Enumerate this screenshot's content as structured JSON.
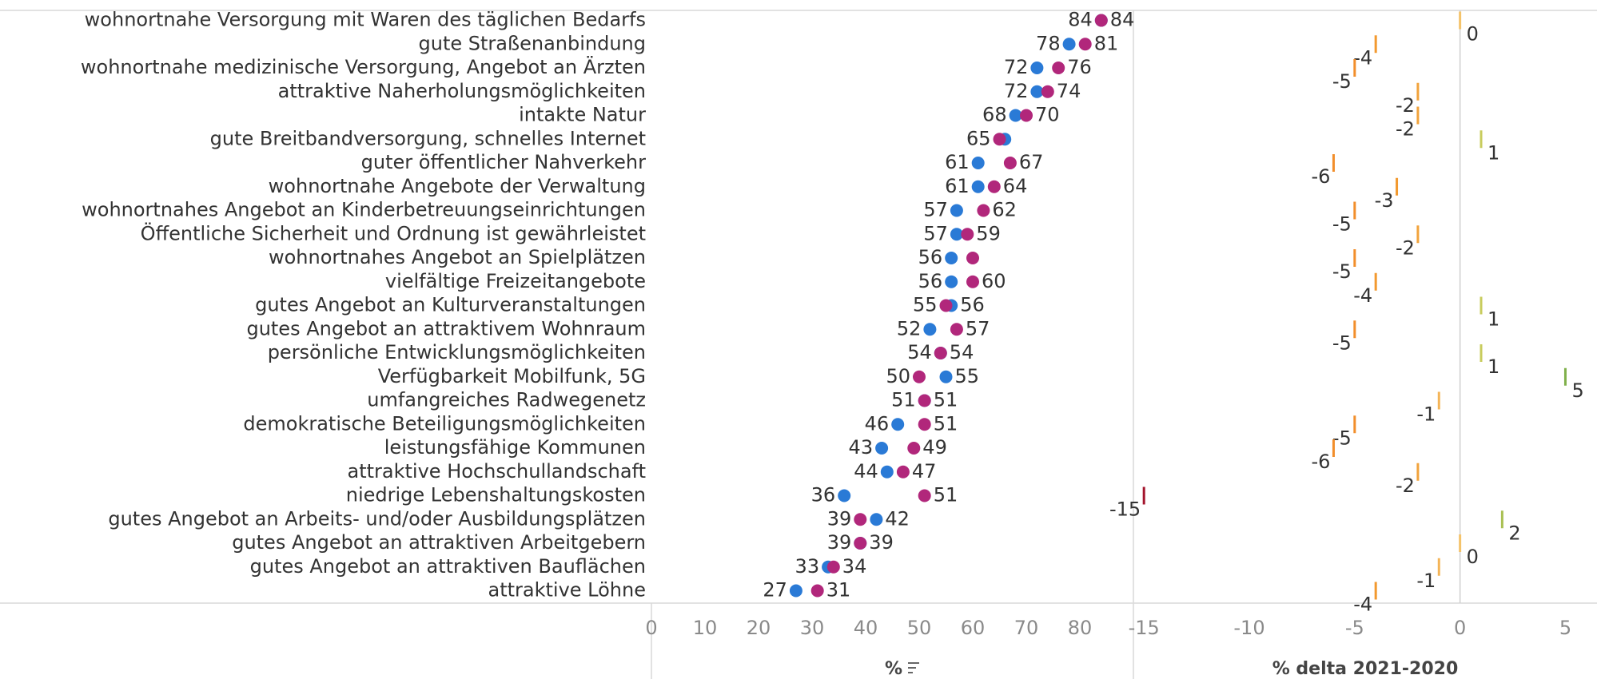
{
  "chart_data": [
    {
      "type": "dot",
      "categories": [
        "wohnortnahe Versorgung mit Waren des täglichen Bedarfs",
        "gute Straßenanbindung",
        "wohnortnahe medizinische Versorgung, Angebot an Ärzten",
        "attraktive Naherholungsmöglichkeiten",
        "intakte Natur",
        "gute Breitbandversorgung, schnelles Internet",
        "guter öffentlicher Nahverkehr",
        "wohnortnahe Angebote der Verwaltung",
        "wohnortnahes Angebot an Kinderbetreuungseinrichtungen",
        "Öffentliche Sicherheit und Ordnung ist gewährleistet",
        "wohnortnahes Angebot an Spielplätzen",
        "vielfältige Freizeitangebote",
        "gutes Angebot an Kulturveranstaltungen",
        "gutes Angebot an attraktivem Wohnraum",
        "persönliche Entwicklungsmöglichkeiten",
        "Verfügbarkeit Mobilfunk, 5G",
        "umfangreiches Radwegenetz",
        "demokratische Beteiligungsmöglichkeiten",
        "leistungsfähige Kommunen",
        "attraktive Hochschullandschaft",
        "niedrige Lebenshaltungskosten",
        "gutes Angebot an Arbeits- und/oder Ausbildungsplätzen",
        "gutes Angebot an attraktiven Arbeitgebern",
        "gutes Angebot an attraktiven Bauflächen",
        "attraktive Löhne"
      ],
      "series": [
        {
          "color": "#2a7ad6",
          "values": [
            84,
            78,
            72,
            72,
            68,
            66,
            61,
            61,
            57,
            57,
            56,
            56,
            56,
            52,
            54,
            55,
            51,
            46,
            43,
            44,
            36,
            42,
            39,
            33,
            27
          ],
          "value_labels": [
            "84",
            "78",
            "72",
            "72",
            "68",
            null,
            "61",
            "61",
            "57",
            "57",
            "56",
            "56",
            "56",
            "52",
            "54",
            "55",
            "51",
            "46",
            "43",
            "44",
            "36",
            "42",
            "39",
            "33",
            "27"
          ]
        },
        {
          "color": "#b1277b",
          "values": [
            84,
            81,
            76,
            74,
            70,
            65,
            67,
            64,
            62,
            59,
            60,
            60,
            55,
            57,
            54,
            50,
            51,
            51,
            49,
            47,
            51,
            39,
            39,
            34,
            31
          ],
          "value_labels": [
            "84",
            "81",
            "76",
            "74",
            "70",
            "65",
            "67",
            "64",
            "62",
            "59",
            null,
            "60",
            "55",
            "57",
            "54",
            "50",
            "51",
            "51",
            "49",
            "47",
            "51",
            "39",
            "39",
            "34",
            "31"
          ]
        }
      ],
      "xlim": [
        0,
        90
      ],
      "xticks": [
        0,
        10,
        20,
        30,
        40,
        50,
        60,
        70,
        80
      ],
      "xlabel": "%"
    },
    {
      "type": "tick",
      "values": [
        0,
        -4,
        -5,
        -2,
        -2,
        1,
        -6,
        -3,
        -5,
        -2,
        -5,
        -4,
        1,
        -5,
        1,
        5,
        -1,
        -5,
        -6,
        -2,
        -15,
        2,
        0,
        -1,
        -4
      ],
      "colors": [
        "#f4c36a",
        "#f2992f",
        "#f28e2b",
        "#f2a33c",
        "#f2a33c",
        "#c8cc5e",
        "#f28e2b",
        "#f2992f",
        "#f28e2b",
        "#f2a33c",
        "#f28e2b",
        "#f2992f",
        "#c8cc5e",
        "#f28e2b",
        "#c8cc5e",
        "#7fb04a",
        "#f4b457",
        "#f28e2b",
        "#f28e2b",
        "#f2a33c",
        "#a3142c",
        "#a9c052",
        "#f4c36a",
        "#f4b457",
        "#f2992f"
      ],
      "xlim": [
        -15.5,
        6.5
      ],
      "xticks": [
        -15,
        -10,
        -5,
        0,
        5
      ],
      "xlabel": "% delta 2021-2020"
    }
  ]
}
